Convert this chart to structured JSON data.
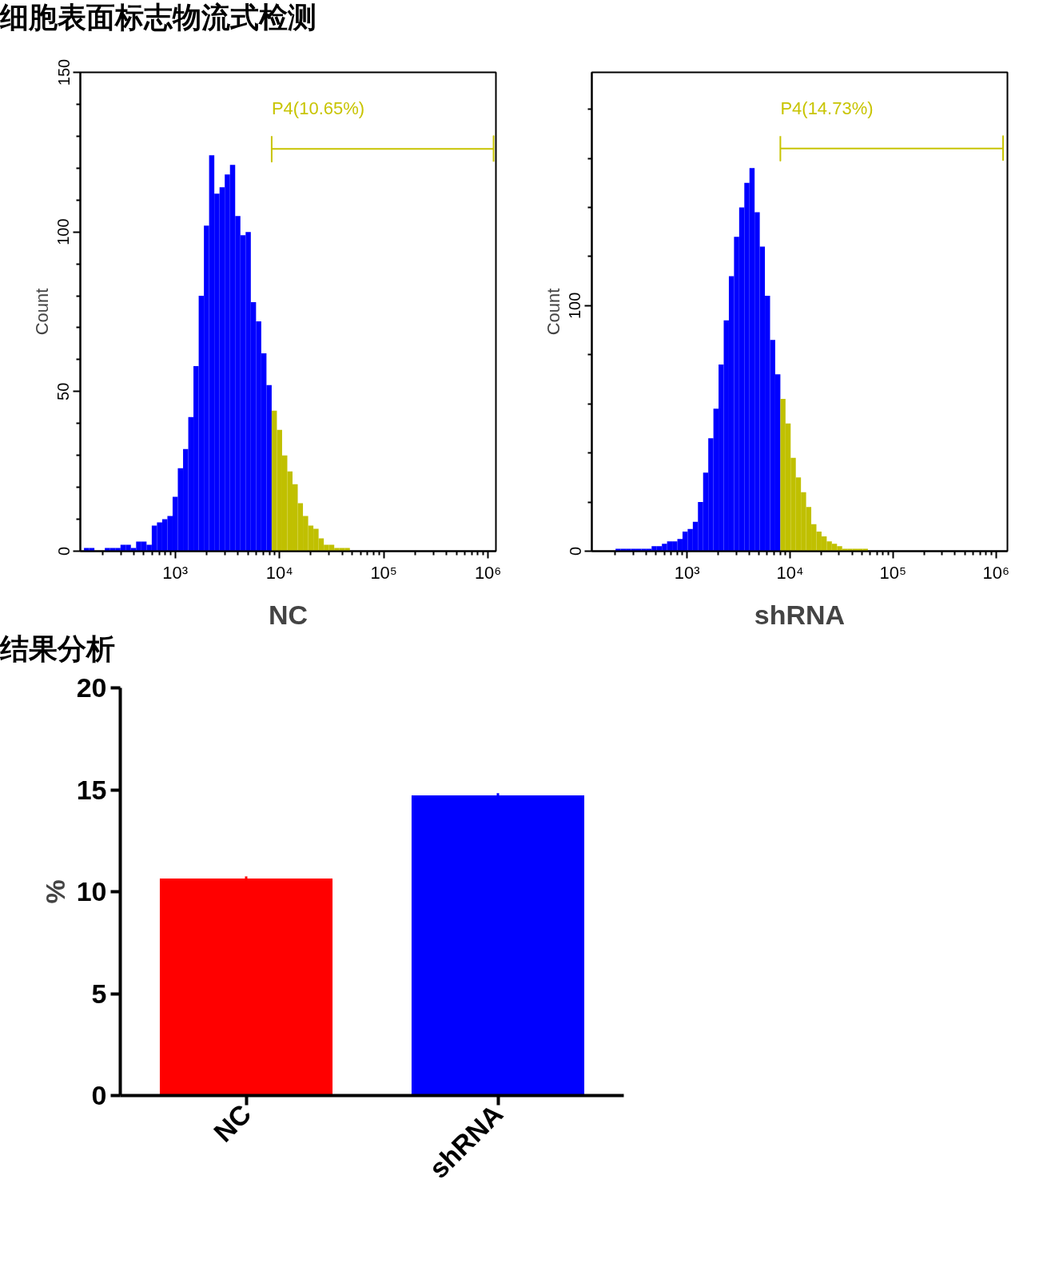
{
  "chart_data": [
    {
      "type": "histogram",
      "title": "细胞表面标志物流式检测",
      "xlabel": "NC",
      "ylabel": "Count",
      "log": "x",
      "grid": false,
      "xlim": [
        123,
        1190000
      ],
      "ylim": [
        0,
        150
      ],
      "xticks": [
        {
          "value": 200,
          "label": null
        },
        {
          "value": 300,
          "label": null
        },
        {
          "value": 400,
          "label": null
        },
        {
          "value": 500,
          "label": null
        },
        {
          "value": 600,
          "label": null
        },
        {
          "value": 700,
          "label": null
        },
        {
          "value": 800,
          "label": null
        },
        {
          "value": 900,
          "label": null
        },
        {
          "value": 1000,
          "label": "10³"
        },
        {
          "value": 2000,
          "label": null
        },
        {
          "value": 3000,
          "label": null
        },
        {
          "value": 4000,
          "label": null
        },
        {
          "value": 5000,
          "label": null
        },
        {
          "value": 6000,
          "label": null
        },
        {
          "value": 7000,
          "label": null
        },
        {
          "value": 8000,
          "label": null
        },
        {
          "value": 9000,
          "label": null
        },
        {
          "value": 10000,
          "label": "10⁴"
        },
        {
          "value": 20000,
          "label": null
        },
        {
          "value": 30000,
          "label": null
        },
        {
          "value": 40000,
          "label": null
        },
        {
          "value": 50000,
          "label": null
        },
        {
          "value": 60000,
          "label": null
        },
        {
          "value": 70000,
          "label": null
        },
        {
          "value": 80000,
          "label": null
        },
        {
          "value": 90000,
          "label": null
        },
        {
          "value": 100000,
          "label": "10⁵"
        },
        {
          "value": 200000,
          "label": null
        },
        {
          "value": 300000,
          "label": null
        },
        {
          "value": 400000,
          "label": null
        },
        {
          "value": 500000,
          "label": null
        },
        {
          "value": 600000,
          "label": null
        },
        {
          "value": 700000,
          "label": null
        },
        {
          "value": 800000,
          "label": null
        },
        {
          "value": 900000,
          "label": null
        },
        {
          "value": 1000000,
          "label": "10⁶"
        }
      ],
      "yticks": [
        0,
        {
          "value": 10,
          "label": null
        },
        {
          "value": 20,
          "label": null
        },
        {
          "value": 30,
          "label": null
        },
        {
          "value": 40,
          "label": null
        },
        50,
        {
          "value": 60,
          "label": null
        },
        {
          "value": 70,
          "label": null
        },
        {
          "value": 80,
          "label": null
        },
        {
          "value": 90,
          "label": null
        },
        100,
        {
          "value": 110,
          "label": null
        },
        {
          "value": 120,
          "label": null
        },
        {
          "value": 130,
          "label": null
        },
        {
          "value": 140,
          "label": null
        },
        150
      ],
      "annotations": [
        "P4(10.65%)"
      ],
      "series": [
        {
          "type": "histogram",
          "bins": [
            133.4,
            149.6,
            167.9,
            188.4,
            211.3,
            237.1,
            266.1,
            298.5,
            335.0,
            375.8,
            421.7,
            473.2,
            530.9,
            595.7,
            668.3,
            749.9,
            841.4,
            944.1,
            1059,
            1189,
            1334,
            1496,
            1679,
            1884,
            2113,
            2371,
            2661,
            2985,
            3350,
            3758,
            4217,
            4732,
            5309,
            5957,
            6683,
            7499,
            8414,
            9441,
            10593,
            11885,
            13335,
            14962,
            16788,
            18836,
            21135,
            23714,
            26607,
            29854,
            33497,
            37584,
            42170,
            47315,
            53088,
            59566
          ],
          "values": [
            1,
            1,
            0,
            0,
            1,
            1,
            1,
            2,
            2,
            1,
            3,
            3,
            2,
            8,
            9,
            10,
            11,
            17,
            26,
            32,
            42,
            58,
            80,
            102,
            124,
            112,
            114,
            118,
            121,
            105,
            99,
            100,
            78,
            72,
            62,
            52,
            44,
            38,
            30,
            25,
            21,
            15,
            11,
            8,
            7,
            4,
            2,
            2,
            1,
            1,
            1,
            0,
            0
          ],
          "colors": [
            "#0000ff",
            "#0000ff",
            "#0000ff",
            "#0000ff",
            "#0000ff",
            "#0000ff",
            "#0000ff",
            "#0000ff",
            "#0000ff",
            "#0000ff",
            "#0000ff",
            "#0000ff",
            "#0000ff",
            "#0000ff",
            "#0000ff",
            "#0000ff",
            "#0000ff",
            "#0000ff",
            "#0000ff",
            "#0000ff",
            "#0000ff",
            "#0000ff",
            "#0000ff",
            "#0000ff",
            "#0000ff",
            "#0000ff",
            "#0000ff",
            "#0000ff",
            "#0000ff",
            "#0000ff",
            "#0000ff",
            "#0000ff",
            "#0000ff",
            "#0000ff",
            "#0000ff",
            "#0000ff",
            "#c0c000",
            "#c0c000",
            "#c0c000",
            "#c0c000",
            "#c0c000",
            "#c0c000",
            "#c0c000",
            "#c0c000",
            "#c0c000",
            "#c0c000",
            "#c0c000",
            "#c0c000",
            "#c0c000",
            "#c0c000",
            "#c0c000",
            "#c0c000",
            "#c0c000"
          ]
        },
        {
          "type": "line",
          "color": "#c8c400",
          "x": [
            8414,
            8414,
            8414,
            1130000,
            1130000,
            1130000
          ],
          "values": [
            130,
            122,
            126,
            126,
            130,
            122
          ]
        }
      ]
    },
    {
      "type": "histogram",
      "xlabel": "shRNA",
      "ylabel": "Count",
      "log": "x",
      "grid": false,
      "xlim": [
        119,
        1290000
      ],
      "ylim": [
        0,
        195
      ],
      "xticks": [
        {
          "value": 200,
          "label": null
        },
        {
          "value": 300,
          "label": null
        },
        {
          "value": 400,
          "label": null
        },
        {
          "value": 500,
          "label": null
        },
        {
          "value": 600,
          "label": null
        },
        {
          "value": 700,
          "label": null
        },
        {
          "value": 800,
          "label": null
        },
        {
          "value": 900,
          "label": null
        },
        {
          "value": 1000,
          "label": "10³"
        },
        {
          "value": 2000,
          "label": null
        },
        {
          "value": 3000,
          "label": null
        },
        {
          "value": 4000,
          "label": null
        },
        {
          "value": 5000,
          "label": null
        },
        {
          "value": 6000,
          "label": null
        },
        {
          "value": 7000,
          "label": null
        },
        {
          "value": 8000,
          "label": null
        },
        {
          "value": 9000,
          "label": null
        },
        {
          "value": 10000,
          "label": "10⁴"
        },
        {
          "value": 20000,
          "label": null
        },
        {
          "value": 30000,
          "label": null
        },
        {
          "value": 40000,
          "label": null
        },
        {
          "value": 50000,
          "label": null
        },
        {
          "value": 60000,
          "label": null
        },
        {
          "value": 70000,
          "label": null
        },
        {
          "value": 80000,
          "label": null
        },
        {
          "value": 90000,
          "label": null
        },
        {
          "value": 100000,
          "label": "10⁵"
        },
        {
          "value": 200000,
          "label": null
        },
        {
          "value": 300000,
          "label": null
        },
        {
          "value": 400000,
          "label": null
        },
        {
          "value": 500000,
          "label": null
        },
        {
          "value": 600000,
          "label": null
        },
        {
          "value": 700000,
          "label": null
        },
        {
          "value": 800000,
          "label": null
        },
        {
          "value": 900000,
          "label": null
        },
        {
          "value": 1000000,
          "label": "10⁶"
        }
      ],
      "yticks": [
        0,
        {
          "value": 20,
          "label": null
        },
        {
          "value": 40,
          "label": null
        },
        {
          "value": 60,
          "label": null
        },
        {
          "value": 80,
          "label": null
        },
        100,
        {
          "value": 120,
          "label": null
        },
        {
          "value": 140,
          "label": null
        },
        {
          "value": 160,
          "label": null
        },
        {
          "value": 180,
          "label": null
        }
      ],
      "annotations": [
        "P4(14.73%)"
      ],
      "series": [
        {
          "type": "histogram",
          "bins": [
            127.6,
            143.2,
            160.7,
            180.3,
            202.3,
            227.0,
            254.7,
            285.8,
            320.6,
            359.8,
            403.7,
            452.9,
            508.2,
            570.2,
            639.7,
            717.8,
            805.4,
            903.7,
            1014,
            1138,
            1276,
            1432,
            1607,
            1803,
            2023,
            2270,
            2547,
            2858,
            3206,
            3598,
            4037,
            4529,
            5082,
            5702,
            6397,
            7178,
            8054,
            9037,
            10139,
            11376,
            12764,
            14322,
            16069,
            18030,
            20230,
            22699,
            25468,
            28576,
            32063,
            35975,
            40365,
            45290,
            50816,
            57016
          ],
          "values": [
            0,
            0,
            0,
            0,
            1,
            1,
            1,
            1,
            1,
            1,
            1,
            2,
            2,
            3,
            4,
            4,
            5,
            8,
            9,
            12,
            20,
            32,
            46,
            58,
            76,
            94,
            112,
            128,
            140,
            150,
            156,
            138,
            124,
            104,
            86,
            72,
            62,
            52,
            38,
            30,
            24,
            18,
            11,
            8,
            6,
            4,
            3,
            2,
            1,
            1,
            1,
            1,
            1
          ],
          "colors": [
            "#0000ff",
            "#0000ff",
            "#0000ff",
            "#0000ff",
            "#0000ff",
            "#0000ff",
            "#0000ff",
            "#0000ff",
            "#0000ff",
            "#0000ff",
            "#0000ff",
            "#0000ff",
            "#0000ff",
            "#0000ff",
            "#0000ff",
            "#0000ff",
            "#0000ff",
            "#0000ff",
            "#0000ff",
            "#0000ff",
            "#0000ff",
            "#0000ff",
            "#0000ff",
            "#0000ff",
            "#0000ff",
            "#0000ff",
            "#0000ff",
            "#0000ff",
            "#0000ff",
            "#0000ff",
            "#0000ff",
            "#0000ff",
            "#0000ff",
            "#0000ff",
            "#0000ff",
            "#0000ff",
            "#c0c000",
            "#c0c000",
            "#c0c000",
            "#c0c000",
            "#c0c000",
            "#c0c000",
            "#c0c000",
            "#c0c000",
            "#c0c000",
            "#c0c000",
            "#c0c000",
            "#c0c000",
            "#c0c000",
            "#c0c000",
            "#c0c000",
            "#c0c000",
            "#c0c000"
          ]
        },
        {
          "type": "line",
          "color": "#c8c400",
          "x": [
            8054,
            8054,
            8054,
            1170000,
            1170000,
            1170000
          ],
          "values": [
            169,
            159,
            164,
            164,
            169,
            159
          ]
        }
      ]
    },
    {
      "type": "bar",
      "title": "结果分析",
      "ylabel": "%",
      "grid": false,
      "categories": [
        "NC",
        "shRNA"
      ],
      "values": [
        10.65,
        14.73
      ],
      "colors": [
        "#ff0000",
        "#0000ff"
      ],
      "errors": [
        0.1,
        0.1
      ],
      "ylim": [
        0,
        20
      ],
      "yticks": [
        0,
        5,
        10,
        15,
        20
      ]
    }
  ]
}
